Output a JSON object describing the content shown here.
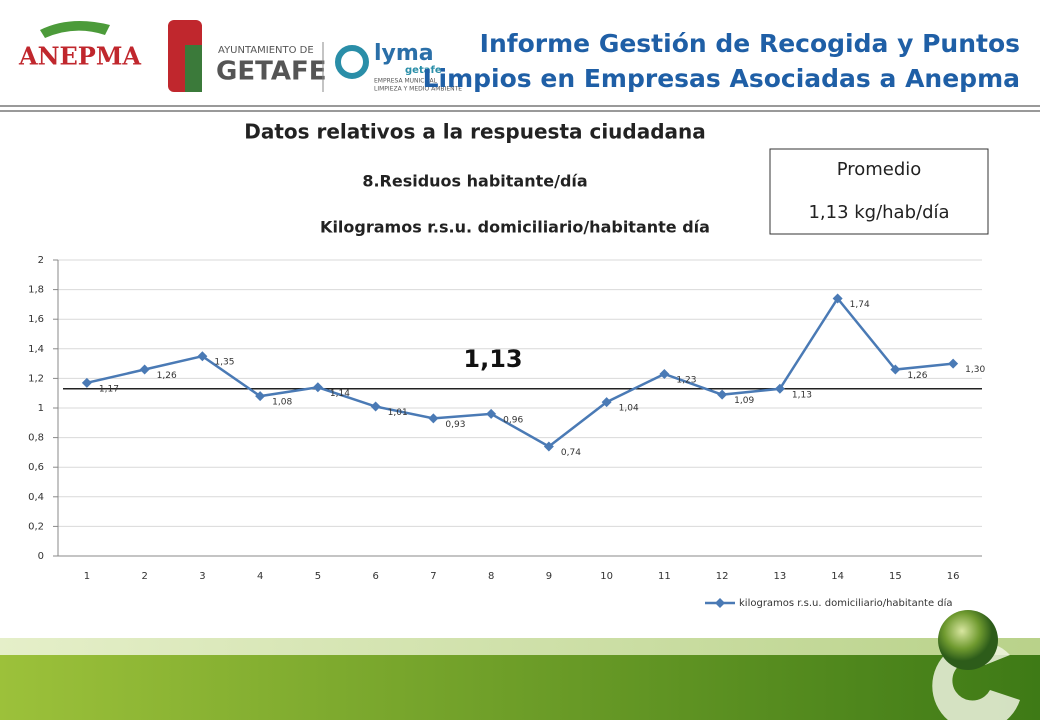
{
  "header": {
    "title_lines": [
      "Informe Gestión de Recogida y Puntos",
      "Limpios en Empresas Asociadas a Anepma"
    ],
    "logos": {
      "anepma": "ANEPMA",
      "ayuntamiento": "AYUNTAMIENTO DE",
      "getafe": "GETAFE",
      "lyma": "lyma",
      "lyma_sub": "getafe",
      "empresa": "EMPRESA MUNICIPAL",
      "limpieza": "LIMPIEZA Y MEDIO AMBIENTE"
    }
  },
  "section_title": "Datos relativos a la respuesta ciudadana",
  "subtitle": "8.Residuos habitante/día",
  "summary": {
    "label": "Promedio",
    "value": "1,13 kg/hab/día"
  },
  "chart_data": {
    "type": "line",
    "title": "Kilogramos r.s.u. domiciliario/habitante día",
    "categories": [
      "1",
      "2",
      "3",
      "4",
      "5",
      "6",
      "7",
      "8",
      "9",
      "10",
      "11",
      "12",
      "13",
      "14",
      "15",
      "16"
    ],
    "series": [
      {
        "name": "kilogramos r.s.u. domiciliario/habitante día",
        "color": "#4a7ab5",
        "values": [
          1.17,
          1.26,
          1.35,
          1.08,
          1.14,
          1.01,
          0.93,
          0.96,
          0.74,
          1.04,
          1.23,
          1.09,
          1.13,
          1.74,
          1.26,
          1.3
        ],
        "value_labels": [
          "1,17",
          "1,26",
          "1,35",
          "1,08",
          "1,14",
          "1,01",
          "0,93",
          "0,96",
          "0,74",
          "1,04",
          "1,23",
          "1,09",
          "1,13",
          "1,74",
          "1,26",
          "1,30"
        ]
      }
    ],
    "ylim": [
      0,
      2
    ],
    "yticks": [
      0,
      {
        "value": 0.2,
        "label": "0,2"
      },
      {
        "value": 0.4,
        "label": "0,4"
      },
      {
        "value": 0.6,
        "label": "0,6"
      },
      {
        "value": 0.8,
        "label": "0,8"
      },
      1,
      {
        "value": 1.2,
        "label": "1,2"
      },
      {
        "value": 1.4,
        "label": "1,4"
      },
      {
        "value": 1.6,
        "label": "1,6"
      },
      {
        "value": 1.8,
        "label": "1,8"
      },
      2
    ],
    "grid": true,
    "average": {
      "value": 1.13,
      "label": "1,13"
    },
    "legend": "bottom-right"
  }
}
